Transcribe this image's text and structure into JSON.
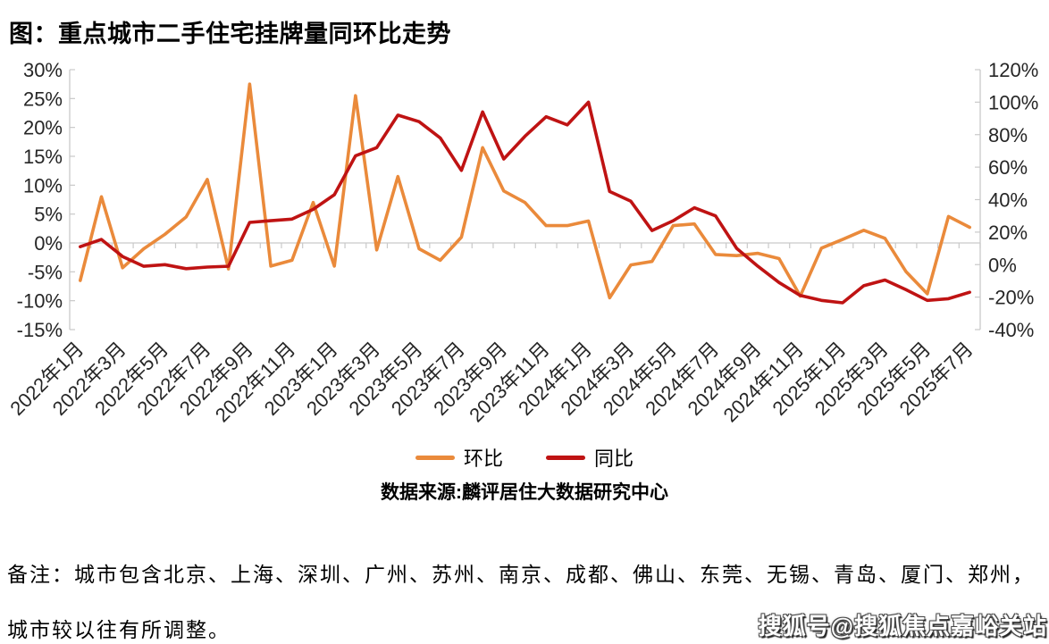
{
  "title": "图：重点城市二手住宅挂牌量同环比走势",
  "source": "数据来源:麟评居住大数据研究中心",
  "note_line1": "备注：城市包含北京、上海、深圳、广州、苏州、南京、成都、佛山、东莞、无锡、青岛、厦门、郑州，",
  "note_line2": "城市较以往有所调整。",
  "watermark": "搜狐号@搜狐焦点嘉峪关站",
  "colors": {
    "mom_line": "#EA8A3B",
    "yoy_line": "#BF1313",
    "axis": "#C9C9C9",
    "tick": "#C9C9C9",
    "axis_text": "#262626",
    "background": "#FFFFFF"
  },
  "chart_data": {
    "type": "line",
    "title": "重点城市二手住宅挂牌量同环比走势",
    "grid": "zero-line-only",
    "legend_position": "bottom",
    "x_label_every": 2,
    "categories": [
      "2022年1月",
      "2022年2月",
      "2022年3月",
      "2022年4月",
      "2022年5月",
      "2022年6月",
      "2022年7月",
      "2022年8月",
      "2022年9月",
      "2022年10月",
      "2022年11月",
      "2022年12月",
      "2023年1月",
      "2023年2月",
      "2023年3月",
      "2023年4月",
      "2023年5月",
      "2023年6月",
      "2023年7月",
      "2023年8月",
      "2023年9月",
      "2023年10月",
      "2023年11月",
      "2023年12月",
      "2024年1月",
      "2024年2月",
      "2024年3月",
      "2024年4月",
      "2024年5月",
      "2024年6月",
      "2024年7月",
      "2024年8月",
      "2024年9月",
      "2024年10月",
      "2024年11月",
      "2024年12月",
      "2025年1月",
      "2025年2月",
      "2025年3月",
      "2025年4月",
      "2025年5月",
      "2025年6月",
      "2025年7月"
    ],
    "left_axis": {
      "min": -15,
      "max": 30,
      "step": 5,
      "unit": "%",
      "labels": [
        "30%",
        "25%",
        "20%",
        "15%",
        "10%",
        "5%",
        "0%",
        "-5%",
        "-10%",
        "-15%"
      ]
    },
    "right_axis": {
      "min": -40,
      "max": 120,
      "step": 20,
      "unit": "%",
      "labels": [
        "120%",
        "100%",
        "80%",
        "60%",
        "40%",
        "20%",
        "0%",
        "-20%",
        "-40%"
      ]
    },
    "series": [
      {
        "name": "环比",
        "axis": "left",
        "color": "#EA8A3B",
        "values": [
          -6.5,
          8,
          -4.3,
          -1,
          1.5,
          4.5,
          11,
          -4.5,
          27.5,
          -4,
          -3,
          7,
          -4,
          25.5,
          -1.2,
          11.5,
          -1,
          -3,
          1,
          16.5,
          9,
          7,
          3,
          3,
          3.8,
          -9.5,
          -3.8,
          -3.2,
          3,
          3.3,
          -2,
          -2.2,
          -1.8,
          -2.7,
          -9.2,
          -0.9,
          0.6,
          2.2,
          0.8,
          -5,
          -8.8,
          4.6,
          2.7
        ]
      },
      {
        "name": "同比",
        "axis": "right",
        "color": "#BF1313",
        "values": [
          11,
          15.5,
          5,
          -1,
          0,
          -2.5,
          -1.5,
          -1,
          26,
          27,
          28,
          34,
          43,
          67,
          72,
          92,
          88,
          78,
          58,
          94,
          65,
          79,
          91,
          86,
          100,
          45,
          39,
          21,
          27,
          35,
          30,
          10,
          -1,
          -11,
          -19,
          -22,
          -23.5,
          -13,
          -9.5,
          -15.5,
          -22,
          -21,
          -17
        ]
      }
    ]
  }
}
